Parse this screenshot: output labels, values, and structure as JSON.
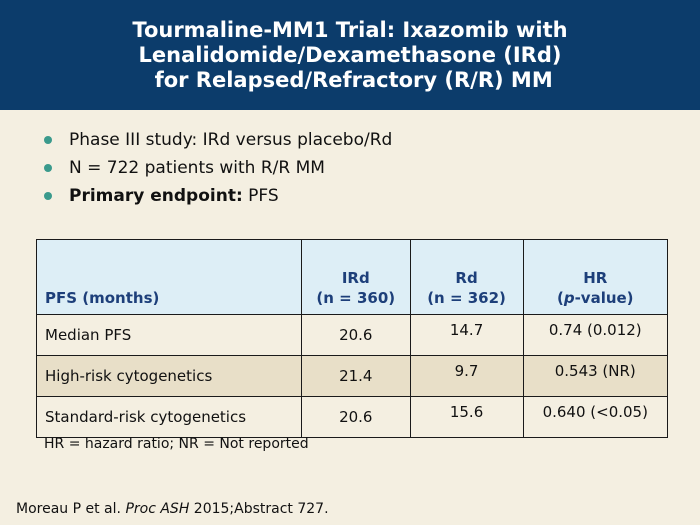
{
  "header": {
    "title_lines": [
      "Tourmaline-MM1 Trial: Ixazomib with",
      "Lenalidomide/Dexamethasone (IRd)",
      " for Relapsed/Refractory (R/R) MM"
    ]
  },
  "bullets": [
    {
      "bold": "",
      "text": "Phase III study: IRd versus placebo/Rd"
    },
    {
      "bold": "",
      "text": "N = 722 patients with R/R MM"
    },
    {
      "bold": "Primary endpoint:",
      "text": " PFS"
    }
  ],
  "table": {
    "headers": [
      {
        "line1": "",
        "line2": "PFS (months)"
      },
      {
        "line1": "IRd",
        "line2": "(n = 360)"
      },
      {
        "line1": "Rd",
        "line2": "(n = 362)"
      },
      {
        "line1": "HR",
        "line2_pre": "(",
        "line2_italic": "p",
        "line2_post": "-value)"
      }
    ],
    "rows": [
      [
        "Median PFS",
        "20.6",
        "14.7",
        "0.74 (0.012)"
      ],
      [
        "High-risk cytogenetics",
        "21.4",
        "9.7",
        "0.543 (NR)"
      ],
      [
        "Standard-risk cytogenetics",
        "20.6",
        "15.6",
        "0.640 (<0.05)"
      ]
    ]
  },
  "footnote": "HR = hazard ratio; NR = Not reported",
  "citation": {
    "pre": "Moreau P et al. ",
    "italic": "Proc ASH",
    "post": " 2015;Abstract 727."
  },
  "colors": {
    "header_bg": "#0c3c6b",
    "page_bg": "#f4efe1",
    "bullet": "#3a9a8c",
    "table_header_bg": "#ddeef6",
    "table_header_text": "#1d3f7a",
    "row_alt_bg": "#e8dfc8"
  }
}
